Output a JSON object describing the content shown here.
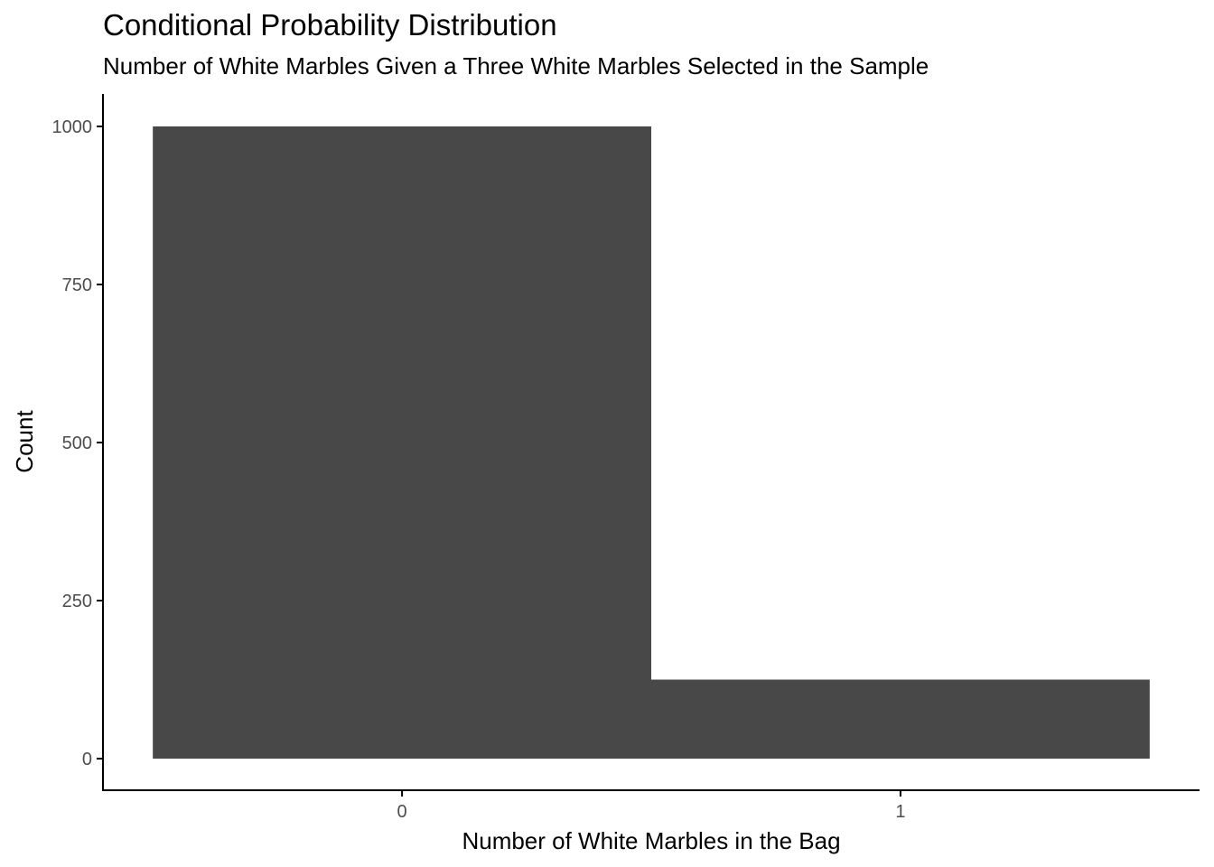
{
  "chart_data": {
    "type": "bar",
    "title": "Conditional Probability Distribution",
    "subtitle": "Number of White Marbles Given a Three White Marbles Selected in the Sample",
    "xlabel": "Number of White Marbles in the Bag",
    "ylabel": "Count",
    "categories": [
      "0",
      "1"
    ],
    "values": [
      1000,
      125
    ],
    "ylim": [
      0,
      1050
    ],
    "yticks": [
      0,
      250,
      500,
      750,
      1000
    ],
    "ytick_labels": [
      "0",
      "250",
      "500",
      "750",
      "1000"
    ],
    "grid": false,
    "bar_color": "#484848",
    "axis_color": "#000000",
    "tick_label_color": "#4d4d4d"
  }
}
